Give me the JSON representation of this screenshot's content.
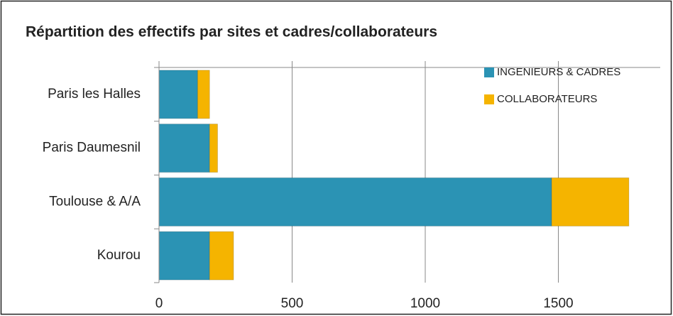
{
  "chart_data": {
    "type": "bar",
    "orientation": "horizontal",
    "stacked": true,
    "title": "Répartition des effectifs par sites et cadres/collaborateurs",
    "categories": [
      "Paris les Halles",
      "Paris Daumesnil",
      "Toulouse & A/A",
      "Kourou"
    ],
    "series": [
      {
        "name": "INGENIEURS & CADRES",
        "color": "#2b93b4",
        "values": [
          145,
          190,
          1475,
          190
        ]
      },
      {
        "name": "COLLABORATEURS",
        "color": "#f5b400",
        "values": [
          45,
          30,
          290,
          90
        ]
      }
    ],
    "xlim": [
      0,
      1800
    ],
    "xticks": [
      0,
      500,
      1000,
      1500
    ],
    "grid": true,
    "legend": "top-right"
  }
}
